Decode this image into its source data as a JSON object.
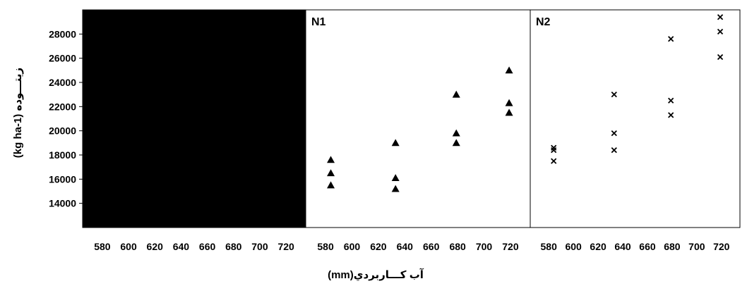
{
  "chart_data": {
    "type": "scatter",
    "xlabel": "آب كـــاربردي(mm)",
    "ylabel": "(kg ha-1) زيتـــوده",
    "xlim": [
      565,
      735
    ],
    "ylim": [
      12000,
      30000
    ],
    "x_ticks": [
      580,
      600,
      620,
      640,
      660,
      680,
      700,
      720
    ],
    "y_ticks": [
      14000,
      16000,
      18000,
      20000,
      22000,
      24000,
      26000,
      28000
    ],
    "grid": false,
    "panels": [
      {
        "label": "",
        "fill": "#000000",
        "marker": "none",
        "x": [],
        "y": []
      },
      {
        "label": "N1",
        "fill": "#ffffff",
        "marker": "triangle",
        "x": [
          584,
          584,
          584,
          633,
          633,
          633,
          679,
          679,
          679,
          719,
          719,
          719
        ],
        "y": [
          17600,
          16500,
          15500,
          19000,
          16100,
          15200,
          23000,
          19800,
          19000,
          25000,
          22300,
          21500
        ]
      },
      {
        "label": "N2",
        "fill": "#ffffff",
        "marker": "cross",
        "x": [
          584,
          584,
          584,
          633,
          633,
          633,
          679,
          679,
          679,
          719,
          719,
          719
        ],
        "y": [
          18600,
          18400,
          17500,
          23000,
          19800,
          18400,
          27600,
          22500,
          21300,
          29400,
          28200,
          26100
        ]
      }
    ]
  }
}
